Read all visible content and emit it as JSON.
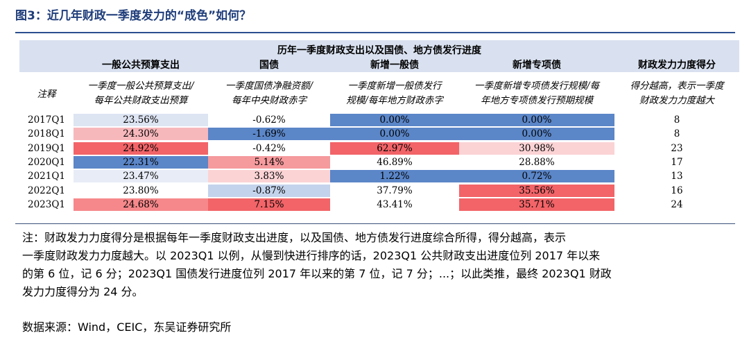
{
  "figure": {
    "title": "图3：近几年财政一季度发力的“成色”如何？"
  },
  "table": {
    "title": "历年一季度财政支出以及国债、地方债发行进度",
    "columns": [
      "一般公共预算支出",
      "国债",
      "新增一般债",
      "新增专项债",
      "财政发力力度得分"
    ],
    "notes_label": "注释",
    "notes": [
      [
        "一季度一般公共预算支出/",
        "每年公共财政支出预算"
      ],
      [
        "一季度国债净融资额/",
        "每年中央财政赤字"
      ],
      [
        "一季度新增一般债发行",
        "规模/每年地方财政赤字"
      ],
      [
        "一季度新增专项债发行规模/每",
        "年地方专项债发行预期规模"
      ],
      [
        "得分越高，表示一季度",
        "财政发力力度越大"
      ]
    ],
    "rows": [
      {
        "label": "2017Q1",
        "values": [
          "23.56%",
          "-0.62%",
          "0.00%",
          "0.00%"
        ],
        "score": "8",
        "colors": [
          "#dde4f2",
          "#ffffff",
          "#5b86c8",
          "#5b86c8"
        ]
      },
      {
        "label": "2018Q1",
        "values": [
          "24.30%",
          "-1.69%",
          "0.00%",
          "0.00%"
        ],
        "score": "8",
        "colors": [
          "#f7b8bc",
          "#5b86c8",
          "#5b86c8",
          "#5b86c8"
        ]
      },
      {
        "label": "2019Q1",
        "values": [
          "24.92%",
          "-0.42%",
          "62.97%",
          "30.98%"
        ],
        "score": "23",
        "colors": [
          "#f26468",
          "#ffffff",
          "#f26468",
          "#fbd3d5"
        ]
      },
      {
        "label": "2020Q1",
        "values": [
          "22.31%",
          "5.14%",
          "46.89%",
          "28.88%"
        ],
        "score": "17",
        "colors": [
          "#5b86c8",
          "#f59a9d",
          "#ffffff",
          "#ffffff"
        ]
      },
      {
        "label": "2021Q1",
        "values": [
          "23.47%",
          "3.83%",
          "1.22%",
          "0.72%"
        ],
        "score": "13",
        "colors": [
          "#e7ecf6",
          "#fbd3d5",
          "#5b86c8",
          "#5b86c8"
        ]
      },
      {
        "label": "2022Q1",
        "values": [
          "23.80%",
          "-0.87%",
          "37.79%",
          "35.56%"
        ],
        "score": "16",
        "colors": [
          "#ffffff",
          "#c4d3ec",
          "#ffffff",
          "#f26468"
        ]
      },
      {
        "label": "2023Q1",
        "values": [
          "24.68%",
          "7.15%",
          "43.41%",
          "35.71%"
        ],
        "score": "24",
        "colors": [
          "#f6888b",
          "#f26468",
          "#ffffff",
          "#f26468"
        ]
      }
    ]
  },
  "footnote": {
    "lines": [
      "注：财政发力力度得分是根据每年一季度财政支出进度，以及国债、地方债发行进度综合所得，得分越高，表示",
      "一季度财政发力力度越大。以 2023Q1 以例，从慢到快进行排序的话，2023Q1 公共财政支出进度位列 2017 年以来",
      "的第 6 位，记 6 分；2023Q1 国债发行进度位列 2017 年以来的第 7 位，记 7 分；...；以此类推，最终 2023Q1 财政",
      "发力力度得分为 24 分。"
    ],
    "source": "数据来源：Wind，CEIC，东吴证券研究所"
  }
}
